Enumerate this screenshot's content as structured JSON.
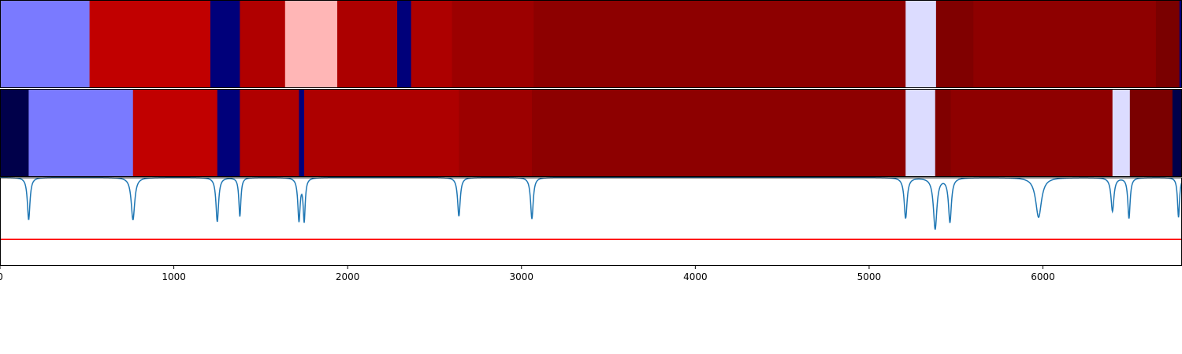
{
  "chart_data": {
    "type": "heatmap",
    "title": "",
    "xlabel": "",
    "ylabel": "",
    "xlim": [
      0,
      6800
    ],
    "grid": false,
    "x_ticks": [
      0,
      1000,
      2000,
      3000,
      4000,
      5000,
      6000
    ],
    "x_tick_labels": [
      "0",
      "1000",
      "2000",
      "3000",
      "4000",
      "5000",
      "6000"
    ],
    "segment_rows": [
      {
        "segments": [
          {
            "start": 0,
            "end": 515,
            "color": "#7a7aff"
          },
          {
            "start": 515,
            "end": 1210,
            "color": "#c10000"
          },
          {
            "start": 1210,
            "end": 1380,
            "color": "#00007a"
          },
          {
            "start": 1380,
            "end": 1640,
            "color": "#b00000"
          },
          {
            "start": 1640,
            "end": 1940,
            "color": "#ffb6b6"
          },
          {
            "start": 1940,
            "end": 2285,
            "color": "#ac0000"
          },
          {
            "start": 2285,
            "end": 2365,
            "color": "#00007a"
          },
          {
            "start": 2365,
            "end": 2600,
            "color": "#ad0000"
          },
          {
            "start": 2600,
            "end": 3070,
            "color": "#9c0000"
          },
          {
            "start": 3070,
            "end": 5210,
            "color": "#8d0000"
          },
          {
            "start": 5210,
            "end": 5385,
            "color": "#dcdcff"
          },
          {
            "start": 5385,
            "end": 5600,
            "color": "#800000"
          },
          {
            "start": 5600,
            "end": 6650,
            "color": "#8e0000"
          },
          {
            "start": 6650,
            "end": 6785,
            "color": "#7a0000"
          },
          {
            "start": 6785,
            "end": 6800,
            "color": "#00007a"
          }
        ]
      },
      {
        "segments": [
          {
            "start": 0,
            "end": 165,
            "color": "#00004a"
          },
          {
            "start": 165,
            "end": 765,
            "color": "#7a7aff"
          },
          {
            "start": 765,
            "end": 1250,
            "color": "#c10000"
          },
          {
            "start": 1250,
            "end": 1380,
            "color": "#00007a"
          },
          {
            "start": 1380,
            "end": 1720,
            "color": "#b00000"
          },
          {
            "start": 1720,
            "end": 1750,
            "color": "#00007a"
          },
          {
            "start": 1750,
            "end": 2640,
            "color": "#ad0000"
          },
          {
            "start": 2640,
            "end": 3060,
            "color": "#9c0000"
          },
          {
            "start": 3060,
            "end": 5210,
            "color": "#8d0000"
          },
          {
            "start": 5210,
            "end": 5380,
            "color": "#dcdcff"
          },
          {
            "start": 5380,
            "end": 5470,
            "color": "#800000"
          },
          {
            "start": 5470,
            "end": 6400,
            "color": "#8e0000"
          },
          {
            "start": 6400,
            "end": 6500,
            "color": "#dcdcff"
          },
          {
            "start": 6500,
            "end": 6745,
            "color": "#7a0000"
          },
          {
            "start": 6745,
            "end": 6800,
            "color": "#00004a"
          }
        ]
      }
    ],
    "signal": {
      "color": "#1f77b4",
      "baseline": 0.0,
      "dips": [
        {
          "x": 165,
          "depth": 0.48,
          "width": 9
        },
        {
          "x": 765,
          "depth": 0.48,
          "width": 12
        },
        {
          "x": 1250,
          "depth": 0.5,
          "width": 9
        },
        {
          "x": 1380,
          "depth": 0.44,
          "width": 7
        },
        {
          "x": 1720,
          "depth": 0.48,
          "width": 8
        },
        {
          "x": 1750,
          "depth": 0.48,
          "width": 7
        },
        {
          "x": 2640,
          "depth": 0.44,
          "width": 9
        },
        {
          "x": 3060,
          "depth": 0.47,
          "width": 9
        },
        {
          "x": 5210,
          "depth": 0.46,
          "width": 10
        },
        {
          "x": 5380,
          "depth": 0.58,
          "width": 12
        },
        {
          "x": 5465,
          "depth": 0.5,
          "width": 10
        },
        {
          "x": 5975,
          "depth": 0.45,
          "width": 20
        },
        {
          "x": 6400,
          "depth": 0.38,
          "width": 10
        },
        {
          "x": 6495,
          "depth": 0.46,
          "width": 8
        },
        {
          "x": 6780,
          "depth": 0.45,
          "width": 7
        }
      ]
    },
    "threshold": {
      "color": "#ff0000",
      "level": 0.7
    }
  }
}
